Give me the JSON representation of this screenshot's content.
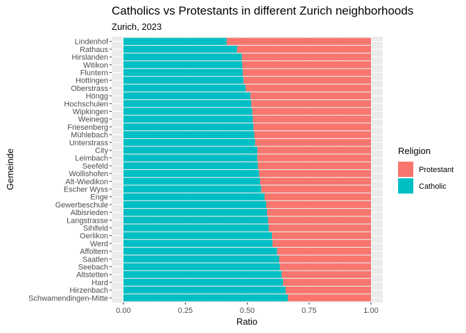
{
  "chart_data": {
    "type": "bar",
    "orientation": "horizontal",
    "stacked": true,
    "title": "Catholics vs Protestants in different Zurich neighborhoods",
    "subtitle": "Zurich, 2023",
    "xlabel": "Ratio",
    "ylabel": "Gemeinde",
    "xlim": [
      0,
      1
    ],
    "xticks": [
      0,
      0.25,
      0.5,
      0.75,
      1
    ],
    "xtick_labels": [
      "0.00",
      "0.25",
      "0.50",
      "0.75",
      "1.00"
    ],
    "grid": true,
    "legend": {
      "title": "Religion",
      "position": "right",
      "entries": [
        {
          "label": "Protestant",
          "color": "#F8766D"
        },
        {
          "label": "Catholic",
          "color": "#00BFC4"
        }
      ]
    },
    "categories": [
      "Lindenhof",
      "Rathaus",
      "Hirslanden",
      "Witikon",
      "Fluntern",
      "Hottingen",
      "Oberstrass",
      "Höngg",
      "Hochschulen",
      "Wipkingen",
      "Weinegg",
      "Friesenberg",
      "Mühlebach",
      "Unterstrass",
      "City",
      "Leimbach",
      "Seefeld",
      "Wollishofen",
      "Alt-Wiedikon",
      "Escher Wyss",
      "Enge",
      "Gewerbeschule",
      "Albisrieden",
      "Langstrasse",
      "Sihlfeld",
      "Oerlikon",
      "Werd",
      "Affoltern",
      "Saatlen",
      "Seebach",
      "Altstetten",
      "Hard",
      "Hirzenbach",
      "Schwamendingen-Mitte"
    ],
    "series": [
      {
        "name": "Catholic",
        "color": "#00BFC4",
        "values": [
          0.417,
          0.459,
          0.478,
          0.48,
          0.482,
          0.485,
          0.494,
          0.513,
          0.516,
          0.52,
          0.523,
          0.525,
          0.528,
          0.532,
          0.541,
          0.541,
          0.543,
          0.548,
          0.552,
          0.557,
          0.57,
          0.577,
          0.58,
          0.584,
          0.587,
          0.6,
          0.602,
          0.621,
          0.629,
          0.632,
          0.639,
          0.645,
          0.655,
          0.664
        ]
      },
      {
        "name": "Protestant",
        "color": "#F8766D",
        "values": [
          0.583,
          0.541,
          0.522,
          0.52,
          0.518,
          0.515,
          0.506,
          0.487,
          0.484,
          0.48,
          0.477,
          0.475,
          0.472,
          0.468,
          0.459,
          0.459,
          0.457,
          0.452,
          0.448,
          0.443,
          0.43,
          0.423,
          0.42,
          0.416,
          0.413,
          0.4,
          0.398,
          0.379,
          0.371,
          0.368,
          0.361,
          0.355,
          0.345,
          0.336
        ]
      }
    ]
  }
}
